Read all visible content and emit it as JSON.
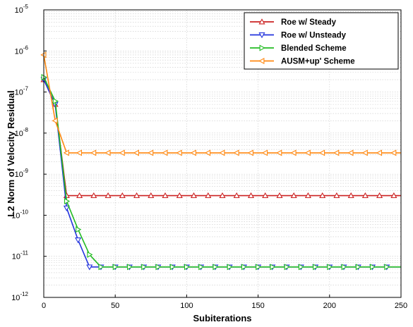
{
  "chart_data": {
    "type": "line",
    "title": "",
    "xlabel": "Subiterations",
    "ylabel": "L2 Norm of Velocity Residual",
    "xlim": [
      0,
      250
    ],
    "ylim_exponents": [
      -12,
      -5
    ],
    "yscale": "log",
    "x_ticks": [
      "0",
      "50",
      "100",
      "150",
      "200",
      "250"
    ],
    "y_ticks": [
      {
        "base": "10",
        "exp": "-5"
      },
      {
        "base": "10",
        "exp": "-6"
      },
      {
        "base": "10",
        "exp": "-7"
      },
      {
        "base": "10",
        "exp": "-8"
      },
      {
        "base": "10",
        "exp": "-9"
      },
      {
        "base": "10",
        "exp": "-10"
      },
      {
        "base": "10",
        "exp": "-11"
      },
      {
        "base": "10",
        "exp": "-12"
      }
    ],
    "grid": true,
    "legend_position": "top-right",
    "series": [
      {
        "name": "Roe w/ Steady",
        "color": "#cc2222",
        "marker": "triangle-up",
        "x": [
          0,
          8,
          16,
          25,
          35,
          45,
          55,
          65,
          75,
          85,
          95,
          105,
          115,
          125,
          135,
          145,
          155,
          165,
          175,
          185,
          195,
          205,
          215,
          225,
          235,
          245,
          250
        ],
        "y": [
          2e-07,
          5e-08,
          3e-10,
          3e-10,
          3e-10,
          3e-10,
          3e-10,
          3e-10,
          3e-10,
          3e-10,
          3e-10,
          3e-10,
          3e-10,
          3e-10,
          3e-10,
          3e-10,
          3e-10,
          3e-10,
          3e-10,
          3e-10,
          3e-10,
          3e-10,
          3e-10,
          3e-10,
          3e-10,
          3e-10,
          3e-10
        ]
      },
      {
        "name": "Roe w/ Unsteady",
        "color": "#2233dd",
        "marker": "triangle-down",
        "x": [
          0,
          8,
          16,
          24,
          32,
          40,
          50,
          60,
          70,
          80,
          90,
          100,
          110,
          120,
          130,
          140,
          150,
          160,
          170,
          180,
          190,
          200,
          210,
          220,
          230,
          240,
          250
        ],
        "y": [
          2e-07,
          5e-08,
          1.5e-10,
          2.5e-11,
          5.5e-12,
          5.5e-12,
          5.5e-12,
          5.5e-12,
          5.5e-12,
          5.5e-12,
          5.5e-12,
          5.5e-12,
          5.5e-12,
          5.5e-12,
          5.5e-12,
          5.5e-12,
          5.5e-12,
          5.5e-12,
          5.5e-12,
          5.5e-12,
          5.5e-12,
          5.5e-12,
          5.5e-12,
          5.5e-12,
          5.5e-12,
          5.5e-12,
          5.5e-12
        ]
      },
      {
        "name": "Blended Scheme",
        "color": "#22bb22",
        "marker": "triangle-right",
        "x": [
          0,
          8,
          16,
          24,
          32,
          40,
          50,
          60,
          70,
          80,
          90,
          100,
          110,
          120,
          130,
          140,
          150,
          160,
          170,
          180,
          190,
          200,
          210,
          220,
          230,
          240,
          250
        ],
        "y": [
          2.3e-07,
          6e-08,
          2.2e-10,
          4.5e-11,
          1.1e-11,
          5.5e-12,
          5.5e-12,
          5.5e-12,
          5.5e-12,
          5.5e-12,
          5.5e-12,
          5.5e-12,
          5.5e-12,
          5.5e-12,
          5.5e-12,
          5.5e-12,
          5.5e-12,
          5.5e-12,
          5.5e-12,
          5.5e-12,
          5.5e-12,
          5.5e-12,
          5.5e-12,
          5.5e-12,
          5.5e-12,
          5.5e-12,
          5.5e-12
        ]
      },
      {
        "name": "AUSM+up' Scheme",
        "color": "#ff8811",
        "marker": "triangle-left",
        "x": [
          0,
          8,
          16,
          25,
          35,
          45,
          55,
          65,
          75,
          85,
          95,
          105,
          115,
          125,
          135,
          145,
          155,
          165,
          175,
          185,
          195,
          205,
          215,
          225,
          235,
          245,
          250
        ],
        "y": [
          8e-07,
          2e-08,
          3.3e-09,
          3.3e-09,
          3.3e-09,
          3.3e-09,
          3.3e-09,
          3.3e-09,
          3.3e-09,
          3.3e-09,
          3.3e-09,
          3.3e-09,
          3.3e-09,
          3.3e-09,
          3.3e-09,
          3.3e-09,
          3.3e-09,
          3.3e-09,
          3.3e-09,
          3.3e-09,
          3.3e-09,
          3.3e-09,
          3.3e-09,
          3.3e-09,
          3.3e-09,
          3.3e-09,
          3.3e-09
        ]
      }
    ]
  }
}
